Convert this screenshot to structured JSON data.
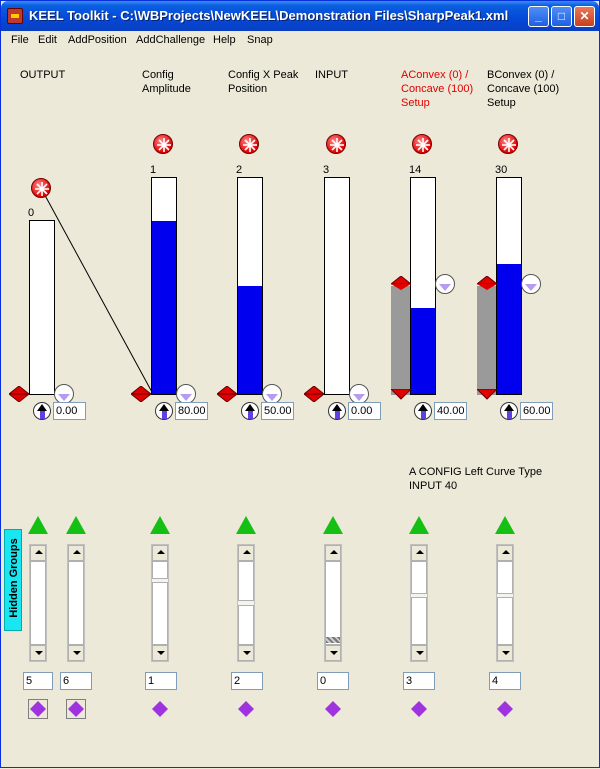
{
  "window": {
    "title": "KEEL Toolkit - C:\\WBProjects\\NewKEEL\\Demonstration Files\\SharpPeak1.xml",
    "minimize_glyph": "_",
    "maximize_glyph": "□",
    "close_glyph": "✕"
  },
  "menu": [
    "File",
    "Edit",
    "AddPosition",
    "AddChallenge",
    "Help",
    "Snap"
  ],
  "columns": [
    {
      "id": "output",
      "label": [
        "OUTPUT"
      ],
      "index": "0",
      "fraction": 0.0,
      "value": "0.00",
      "label_color": "#000000"
    },
    {
      "id": "config-amplitude",
      "label": [
        "Config",
        "Amplitude"
      ],
      "index": "1",
      "fraction": 0.8,
      "value": "80.00",
      "label_color": "#000000"
    },
    {
      "id": "config-x-peak",
      "label": [
        "Config X Peak",
        "Position"
      ],
      "index": "2",
      "fraction": 0.5,
      "value": "50.00",
      "label_color": "#000000"
    },
    {
      "id": "input",
      "label": [
        "INPUT"
      ],
      "index": "3",
      "fraction": 0.0,
      "value": "0.00",
      "label_color": "#000000"
    },
    {
      "id": "aconvex",
      "label": [
        "AConvex (0) /",
        "Concave (100)",
        "Setup"
      ],
      "index": "14",
      "fraction": 0.4,
      "value": "40.00",
      "label_color": "#e00000"
    },
    {
      "id": "bconvex",
      "label": [
        "BConvex (0) /",
        "Concave (100)",
        "Setup"
      ],
      "index": "30",
      "fraction": 0.6,
      "value": "60.00",
      "label_color": "#000000"
    }
  ],
  "info_text": {
    "line1": "A CONFIG Left Curve Type",
    "line2": "INPUT  40"
  },
  "hidden_groups_label": "Hidden  Groups",
  "groups": [
    "5",
    "6",
    "1",
    "2",
    "0",
    "3",
    "4"
  ],
  "colors": {
    "fill_blue": "#0000ee",
    "asterisk_red": "#e00000",
    "green_triangle": "#15c015",
    "purple_diamond": "#a033e0",
    "hidden_tab": "#19e6f0"
  }
}
